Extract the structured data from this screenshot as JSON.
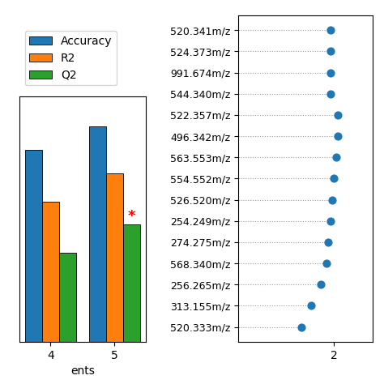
{
  "chart_data": [
    {
      "type": "bar",
      "categories": [
        "4",
        "5"
      ],
      "series": [
        {
          "name": "Accuracy",
          "values": [
            0.82,
            0.92
          ]
        },
        {
          "name": "R2",
          "values": [
            0.6,
            0.72
          ]
        },
        {
          "name": "Q2",
          "values": [
            0.38,
            0.5
          ]
        }
      ],
      "xlabel": "ents",
      "ylim": [
        0,
        1.05
      ],
      "tick_labels": "x",
      "legend": "lower left",
      "annotations": [
        {
          "text": "*",
          "category": "5",
          "series": "Q2",
          "color": "red"
        }
      ]
    },
    {
      "type": "dot",
      "orientation": "horizontal",
      "categories": [
        "520.341m/z",
        "524.373m/z",
        "991.674m/z",
        "544.340m/z",
        "522.357m/z",
        "496.342m/z",
        "563.553m/z",
        "554.552m/z",
        "526.520m/z",
        "254.249m/z",
        "274.275m/z",
        "568.340m/z",
        "256.265m/z",
        "313.155m/z",
        "520.333m/z"
      ],
      "values": [
        1.98,
        1.98,
        1.98,
        1.98,
        2.02,
        2.02,
        2.01,
        2.0,
        1.99,
        1.98,
        1.97,
        1.96,
        1.93,
        1.88,
        1.83
      ],
      "xlim": [
        1.5,
        2.2
      ],
      "xticks": [
        2
      ]
    }
  ]
}
